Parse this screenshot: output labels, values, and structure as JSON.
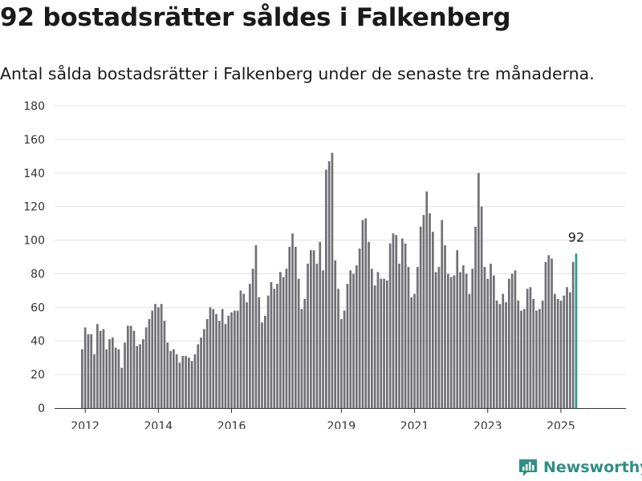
{
  "title": "92 bostadsrätter såldes i Falkenberg",
  "subtitle": "Antal sålda bostadsrätter i Falkenberg under de senaste tre månaderna.",
  "brand": "Newsworthy",
  "colors": {
    "bar": "#707075",
    "highlight": "#2a9a8c",
    "grid": "#e3e3e3",
    "brand": "#2f8f83"
  },
  "chart_data": {
    "type": "bar",
    "ylim": [
      0,
      180
    ],
    "y_ticks": [
      0,
      20,
      40,
      60,
      80,
      100,
      120,
      140,
      160,
      180
    ],
    "x_tick_labels": [
      {
        "label": "2012",
        "index": 1
      },
      {
        "label": "2014",
        "index": 25
      },
      {
        "label": "2016",
        "index": 49
      },
      {
        "label": "2019",
        "index": 85
      },
      {
        "label": "2021",
        "index": 109
      },
      {
        "label": "2023",
        "index": 133
      },
      {
        "label": "2025",
        "index": 157
      }
    ],
    "highlight_label": "92",
    "values": [
      35,
      48,
      44,
      44,
      32,
      50,
      46,
      47,
      35,
      41,
      42,
      36,
      35,
      24,
      39,
      49,
      49,
      46,
      37,
      38,
      41,
      48,
      53,
      58,
      62,
      60,
      62,
      52,
      39,
      34,
      35,
      32,
      27,
      31,
      31,
      30,
      28,
      32,
      38,
      42,
      47,
      53,
      60,
      59,
      56,
      52,
      59,
      50,
      55,
      57,
      58,
      58,
      70,
      68,
      63,
      74,
      83,
      97,
      66,
      51,
      55,
      67,
      75,
      71,
      74,
      81,
      78,
      83,
      96,
      104,
      96,
      77,
      59,
      65,
      86,
      94,
      94,
      86,
      99,
      82,
      142,
      147,
      152,
      88,
      71,
      53,
      58,
      74,
      82,
      80,
      85,
      95,
      112,
      113,
      99,
      83,
      73,
      81,
      77,
      77,
      76,
      98,
      104,
      103,
      86,
      101,
      98,
      84,
      66,
      68,
      84,
      108,
      115,
      129,
      116,
      105,
      81,
      84,
      112,
      97,
      80,
      78,
      79,
      94,
      81,
      85,
      80,
      68,
      83,
      108,
      140,
      120,
      84,
      77,
      86,
      79,
      64,
      62,
      68,
      63,
      77,
      80,
      82,
      64,
      58,
      59,
      71,
      72,
      65,
      58,
      59,
      64,
      87,
      91,
      89,
      68,
      65,
      64,
      67,
      72,
      69,
      87,
      92
    ]
  }
}
